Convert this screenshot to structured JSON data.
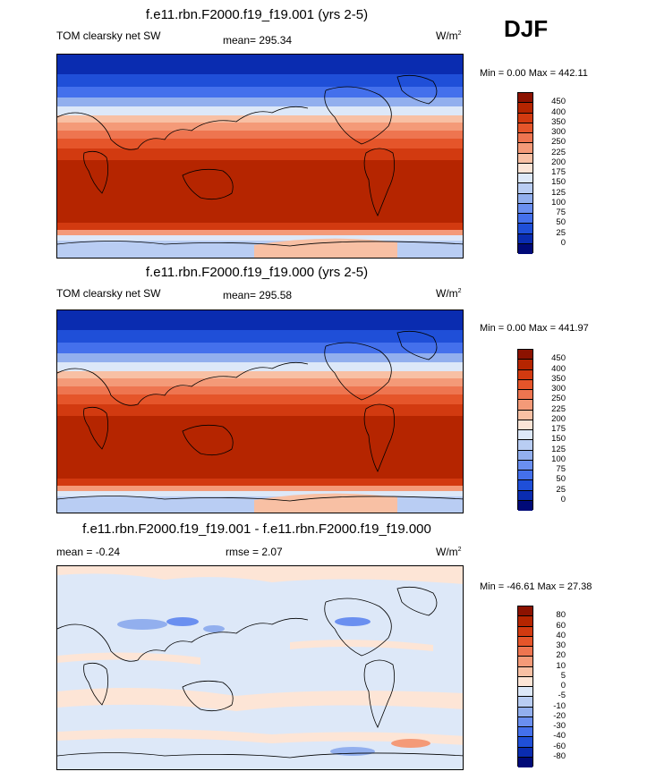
{
  "season": "DJF",
  "panels": [
    {
      "title": "f.e11.rbn.F2000.f19_f19.001 (yrs 2-5)",
      "left_label": "TOM clearsky net SW",
      "center_label": "mean= 295.34",
      "units": "W/m",
      "units_sup": "2",
      "minmax": "Min =   0.00 Max = 442.11",
      "colorbar": {
        "levels": [
          "450",
          "400",
          "350",
          "300",
          "250",
          "225",
          "200",
          "175",
          "150",
          "125",
          "100",
          "75",
          "50",
          "25",
          "0"
        ],
        "colors": [
          "#8c1200",
          "#b52500",
          "#d23a10",
          "#e5552a",
          "#ee7550",
          "#f49a78",
          "#f8c0a4",
          "#fbe4d6",
          "#dde8f8",
          "#b9cdf3",
          "#92afee",
          "#6a8ff0",
          "#4470ec",
          "#1f4fd8",
          "#0a2cb0",
          "#000a78"
        ]
      }
    },
    {
      "title": "f.e11.rbn.F2000.f19_f19.000 (yrs 2-5)",
      "left_label": "TOM clearsky net SW",
      "center_label": "mean= 295.58",
      "units": "W/m",
      "units_sup": "2",
      "minmax": "Min =   0.00 Max = 441.97",
      "colorbar": {
        "levels": [
          "450",
          "400",
          "350",
          "300",
          "250",
          "225",
          "200",
          "175",
          "150",
          "125",
          "100",
          "75",
          "50",
          "25",
          "0"
        ],
        "colors": [
          "#8c1200",
          "#b52500",
          "#d23a10",
          "#e5552a",
          "#ee7550",
          "#f49a78",
          "#f8c0a4",
          "#fbe4d6",
          "#dde8f8",
          "#b9cdf3",
          "#92afee",
          "#6a8ff0",
          "#4470ec",
          "#1f4fd8",
          "#0a2cb0",
          "#000a78"
        ]
      }
    },
    {
      "title": "f.e11.rbn.F2000.f19_f19.001 - f.e11.rbn.F2000.f19_f19.000",
      "left_label": "mean =  -0.24",
      "center_label": "rmse =   2.07",
      "units": "W/m",
      "units_sup": "2",
      "minmax": "Min = -46.61 Max =  27.38",
      "colorbar": {
        "levels": [
          "80",
          "60",
          "40",
          "30",
          "20",
          "10",
          "5",
          "0",
          "-5",
          "-10",
          "-20",
          "-30",
          "-40",
          "-60",
          "-80"
        ],
        "colors": [
          "#8c1200",
          "#b52500",
          "#d23a10",
          "#e5552a",
          "#ee7550",
          "#f49a78",
          "#f8c0a4",
          "#fde5d6",
          "#dde8f8",
          "#b9cdf3",
          "#92afee",
          "#6a8ff0",
          "#4470ec",
          "#1f4fd8",
          "#0a2cb0",
          "#000a78"
        ]
      }
    }
  ]
}
